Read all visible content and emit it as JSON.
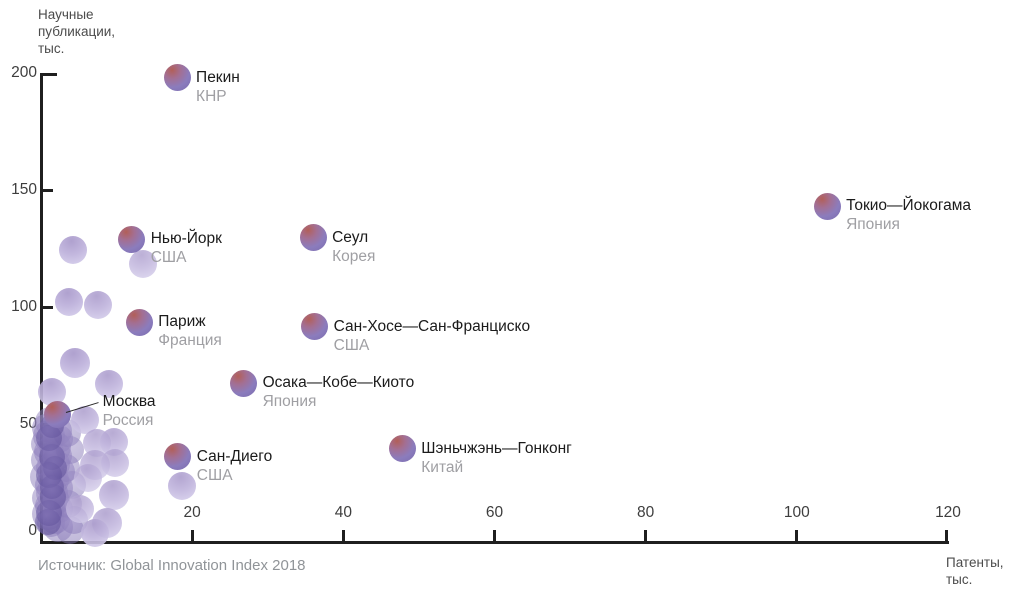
{
  "source": "Источник: Global Innovation Index 2018",
  "axis_titles": {
    "y_lines": [
      "Научные",
      "публикации,",
      "тыс."
    ],
    "x_lines": [
      "Патенты,",
      "тыс."
    ]
  },
  "chart_data": {
    "type": "scatter",
    "title": "",
    "xlabel": "Патенты, тыс.",
    "ylabel": "Научные публикации, тыс.",
    "x_ticks": [
      20,
      40,
      60,
      80,
      100,
      120
    ],
    "y_ticks": [
      0,
      50,
      100,
      150,
      200
    ],
    "xlim": [
      0,
      120
    ],
    "ylim": [
      0,
      200
    ],
    "grid": false,
    "legend": "none",
    "labeled_points": [
      {
        "city": "Пекин",
        "country": "КНР",
        "x": 18,
        "y": 198
      },
      {
        "city": "Токио—Йокогама",
        "country": "Япония",
        "x": 104,
        "y": 143
      },
      {
        "city": "Нью-Йорк",
        "country": "США",
        "x": 12,
        "y": 129
      },
      {
        "city": "Сеул",
        "country": "Корея",
        "x": 36,
        "y": 129.5
      },
      {
        "city": "Париж",
        "country": "Франция",
        "x": 13,
        "y": 93.5
      },
      {
        "city": "Сан-Хосе—Сан-Франциско",
        "country": "США",
        "x": 36.2,
        "y": 91.5
      },
      {
        "city": "Осака—Кобе—Киото",
        "country": "Япония",
        "x": 26.8,
        "y": 67.5
      },
      {
        "city": "Москва",
        "country": "Россия",
        "x": 2.2,
        "y": 54,
        "leader": true
      },
      {
        "city": "Сан-Диего",
        "country": "США",
        "x": 18.1,
        "y": 36
      },
      {
        "city": "Шэньчжэнь—Гонконг",
        "country": "Китай",
        "x": 47.8,
        "y": 39.5
      }
    ],
    "background_points": [
      {
        "x": 4.2,
        "y": 124.5,
        "r": 14,
        "o": 0.95
      },
      {
        "x": 13.5,
        "y": 118.5,
        "r": 14,
        "o": 0.8
      },
      {
        "x": 3.7,
        "y": 102,
        "r": 14,
        "o": 0.95
      },
      {
        "x": 7.6,
        "y": 101,
        "r": 14,
        "o": 0.9
      },
      {
        "x": 4.5,
        "y": 76,
        "r": 15,
        "o": 0.95
      },
      {
        "x": 9.0,
        "y": 67,
        "r": 14,
        "o": 0.9
      },
      {
        "x": 1.5,
        "y": 63.5,
        "r": 14,
        "o": 0.9
      },
      {
        "x": 5.8,
        "y": 51.5,
        "r": 14,
        "o": 0.85
      },
      {
        "x": 7.4,
        "y": 42,
        "r": 14,
        "o": 0.8
      },
      {
        "x": 9.6,
        "y": 42.5,
        "r": 14,
        "o": 0.85
      },
      {
        "x": 7.2,
        "y": 32.5,
        "r": 15,
        "o": 0.8
      },
      {
        "x": 9.8,
        "y": 33.5,
        "r": 14,
        "o": 0.8
      },
      {
        "x": 6.2,
        "y": 27,
        "r": 14,
        "o": 0.75
      },
      {
        "x": 9.6,
        "y": 19.5,
        "r": 15,
        "o": 0.85
      },
      {
        "x": 5.2,
        "y": 13.5,
        "r": 14,
        "o": 0.8
      },
      {
        "x": 8.7,
        "y": 7.5,
        "r": 15,
        "o": 0.85
      },
      {
        "x": 7.2,
        "y": 3.5,
        "r": 14,
        "o": 0.9
      },
      {
        "x": 18.7,
        "y": 23.5,
        "r": 14,
        "o": 0.9
      }
    ],
    "cluster_points": [
      {
        "x": 1.2,
        "y": 51,
        "r": 15,
        "s": "mid"
      },
      {
        "x": 0.6,
        "y": 48.5,
        "r": 14,
        "s": "mid"
      },
      {
        "x": 2.1,
        "y": 47,
        "r": 15,
        "s": "mid"
      },
      {
        "x": 1.0,
        "y": 45,
        "r": 16,
        "s": "mid"
      },
      {
        "x": 2.4,
        "y": 43.5,
        "r": 14,
        "s": "mid"
      },
      {
        "x": 0.7,
        "y": 41.5,
        "r": 15,
        "s": "mid"
      },
      {
        "x": 1.8,
        "y": 40,
        "r": 16,
        "s": "mid"
      },
      {
        "x": 1.1,
        "y": 38,
        "r": 15,
        "s": "mid"
      },
      {
        "x": 2.3,
        "y": 36.5,
        "r": 14,
        "s": "mid"
      },
      {
        "x": 0.8,
        "y": 34.5,
        "r": 16,
        "s": "mid"
      },
      {
        "x": 1.9,
        "y": 33,
        "r": 15,
        "s": "mid"
      },
      {
        "x": 1.2,
        "y": 31,
        "r": 14,
        "s": "mid"
      },
      {
        "x": 2.5,
        "y": 29.5,
        "r": 15,
        "s": "mid"
      },
      {
        "x": 0.7,
        "y": 27.5,
        "r": 16,
        "s": "mid"
      },
      {
        "x": 1.7,
        "y": 26,
        "r": 15,
        "s": "mid"
      },
      {
        "x": 1.0,
        "y": 24,
        "r": 14,
        "s": "mid"
      },
      {
        "x": 2.2,
        "y": 22.5,
        "r": 15,
        "s": "mid"
      },
      {
        "x": 1.4,
        "y": 20.5,
        "r": 16,
        "s": "mid"
      },
      {
        "x": 0.8,
        "y": 18.5,
        "r": 15,
        "s": "mid"
      },
      {
        "x": 2.0,
        "y": 17,
        "r": 14,
        "s": "mid"
      },
      {
        "x": 1.2,
        "y": 15,
        "r": 15,
        "s": "mid"
      },
      {
        "x": 2.4,
        "y": 13.5,
        "r": 14,
        "s": "mid"
      },
      {
        "x": 0.9,
        "y": 11.5,
        "r": 16,
        "s": "mid"
      },
      {
        "x": 1.8,
        "y": 9.5,
        "r": 15,
        "s": "mid"
      },
      {
        "x": 1.3,
        "y": 7.5,
        "r": 14,
        "s": "mid"
      },
      {
        "x": 2.2,
        "y": 6,
        "r": 15,
        "s": "mid"
      },
      {
        "x": 3.4,
        "y": 46,
        "r": 14,
        "s": "mid"
      },
      {
        "x": 3.8,
        "y": 39,
        "r": 14,
        "s": "mid"
      },
      {
        "x": 3.3,
        "y": 31,
        "r": 14,
        "s": "mid"
      },
      {
        "x": 4.1,
        "y": 24,
        "r": 14,
        "s": "mid"
      },
      {
        "x": 3.6,
        "y": 16,
        "r": 14,
        "s": "mid"
      },
      {
        "x": 4.3,
        "y": 9,
        "r": 14,
        "s": "mid"
      },
      {
        "x": 3.9,
        "y": 4.5,
        "r": 14,
        "s": "mid"
      },
      {
        "x": 1.5,
        "y": 49,
        "r": 12,
        "s": "dark"
      },
      {
        "x": 1.0,
        "y": 44,
        "r": 13,
        "s": "dark"
      },
      {
        "x": 1.5,
        "y": 36,
        "r": 13,
        "s": "dark"
      },
      {
        "x": 1.9,
        "y": 31,
        "r": 12,
        "s": "dark"
      },
      {
        "x": 1.0,
        "y": 28,
        "r": 13,
        "s": "dark"
      },
      {
        "x": 1.4,
        "y": 23,
        "r": 12,
        "s": "dark"
      },
      {
        "x": 1.6,
        "y": 19,
        "r": 13,
        "s": "dark"
      },
      {
        "x": 1.1,
        "y": 12,
        "r": 13,
        "s": "dark"
      },
      {
        "x": 0.9,
        "y": 8,
        "r": 13,
        "s": "dark"
      }
    ],
    "colors": {
      "axis": "#1f1f1f",
      "city_label": "#1b1b1b",
      "country_label": "#9f9fa3",
      "tick_label": "#3e3e3e",
      "source_text": "#909498",
      "bubble_purple": "#8b7cbd",
      "bubble_red_highlight": "#b25f58",
      "bubble_light": "#bfb3dc"
    }
  }
}
